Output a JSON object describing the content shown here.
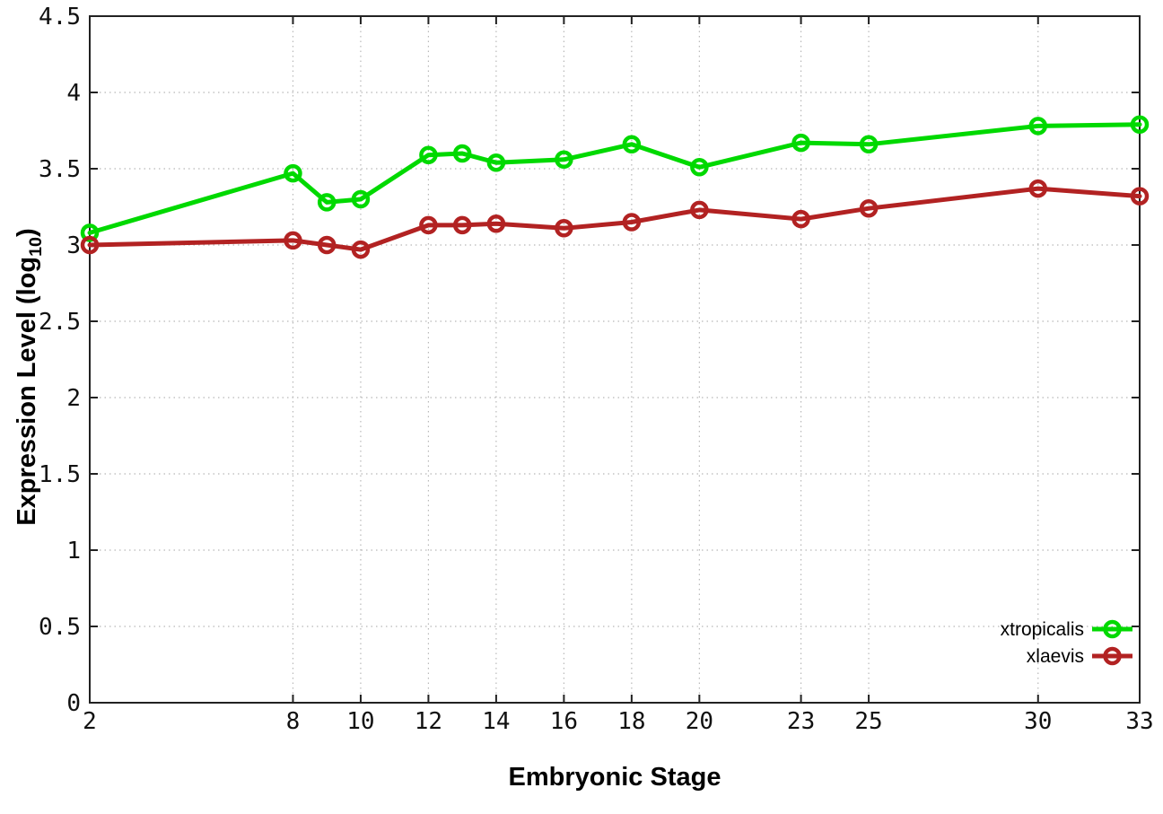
{
  "chart_data": {
    "type": "line",
    "style": "linespoints-open-circle",
    "title": "",
    "xlabel": "Embryonic Stage",
    "ylabel": "Expression Level (log10)",
    "ylabel_parts": {
      "prefix": "Expression Level (log",
      "sub": "10",
      "suffix": ")"
    },
    "x": [
      2,
      8,
      9,
      10,
      12,
      13,
      14,
      16,
      18,
      20,
      23,
      25,
      30,
      33
    ],
    "series": [
      {
        "name": "xtropicalis",
        "color": "#00d900",
        "values": [
          3.08,
          3.47,
          3.28,
          3.3,
          3.59,
          3.6,
          3.54,
          3.56,
          3.66,
          3.51,
          3.67,
          3.66,
          3.78,
          3.79
        ]
      },
      {
        "name": "xlaevis",
        "color": "#b22222",
        "values": [
          3.0,
          3.03,
          3.0,
          2.97,
          3.13,
          3.13,
          3.14,
          3.11,
          3.15,
          3.23,
          3.17,
          3.24,
          3.37,
          3.32
        ]
      }
    ],
    "xticks": [
      2,
      8,
      10,
      12,
      14,
      16,
      18,
      20,
      23,
      25,
      30,
      33
    ],
    "yticks": [
      0,
      0.5,
      1,
      1.5,
      2,
      2.5,
      3,
      3.5,
      4,
      4.5
    ],
    "xlim": [
      2,
      33
    ],
    "ylim": [
      0,
      4.5
    ],
    "grid": true,
    "grid_color": "#b8b8b8",
    "axis_color": "#222222",
    "background": "#ffffff",
    "legend_position": "inside-bottom-right"
  }
}
